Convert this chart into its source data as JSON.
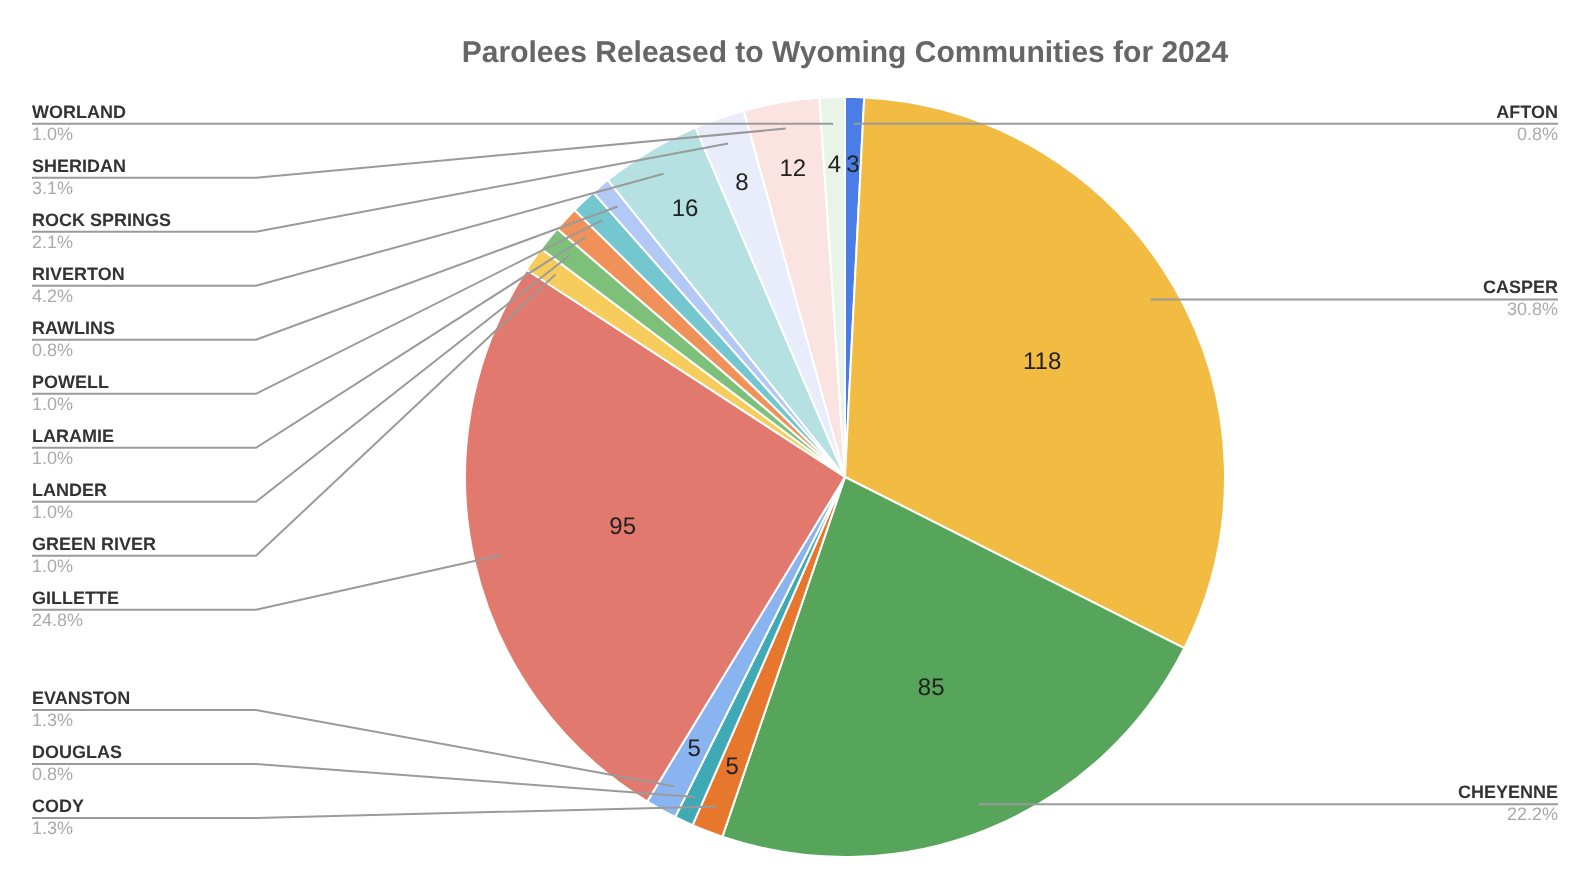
{
  "chart_data": {
    "type": "pie",
    "title": "Parolees Released to Wyoming Communities for 2024",
    "categories": [
      "AFTON",
      "CASPER",
      "CHEYENNE",
      "CODY",
      "DOUGLAS",
      "EVANSTON",
      "GILLETTE",
      "GREEN RIVER",
      "LANDER",
      "LARAMIE",
      "POWELL",
      "RAWLINS",
      "RIVERTON",
      "ROCK SPRINGS",
      "SHERIDAN",
      "WORLAND"
    ],
    "values": [
      3,
      118,
      85,
      5,
      3,
      5,
      95,
      4,
      4,
      4,
      4,
      3,
      16,
      8,
      12,
      4
    ],
    "value_labels": [
      "3",
      "118",
      "85",
      "5",
      null,
      "5",
      "95",
      null,
      null,
      null,
      null,
      null,
      "16",
      "8",
      "12",
      "4"
    ],
    "colors": [
      "#4a7de6",
      "#f2bc42",
      "#57a55a",
      "#e8772e",
      "#3fa9b5",
      "#8ab4f0",
      "#e2796e",
      "#f6cd5c",
      "#7dc07a",
      "#f0915a",
      "#74c6cf",
      "#b2c8f5",
      "#b5e1e3",
      "#e9ecfa",
      "#fbe3e1",
      "#e8f4e8"
    ],
    "annotations": [
      "0.8%",
      "30.8%",
      "22.2%",
      "1.3%",
      "0.8%",
      "1.3%",
      "24.8%",
      "1.0%",
      "1.0%",
      "1.0%",
      "1.0%",
      "0.8%",
      "4.2%",
      "2.1%",
      "3.1%",
      "1.0%"
    ],
    "legend": false
  }
}
